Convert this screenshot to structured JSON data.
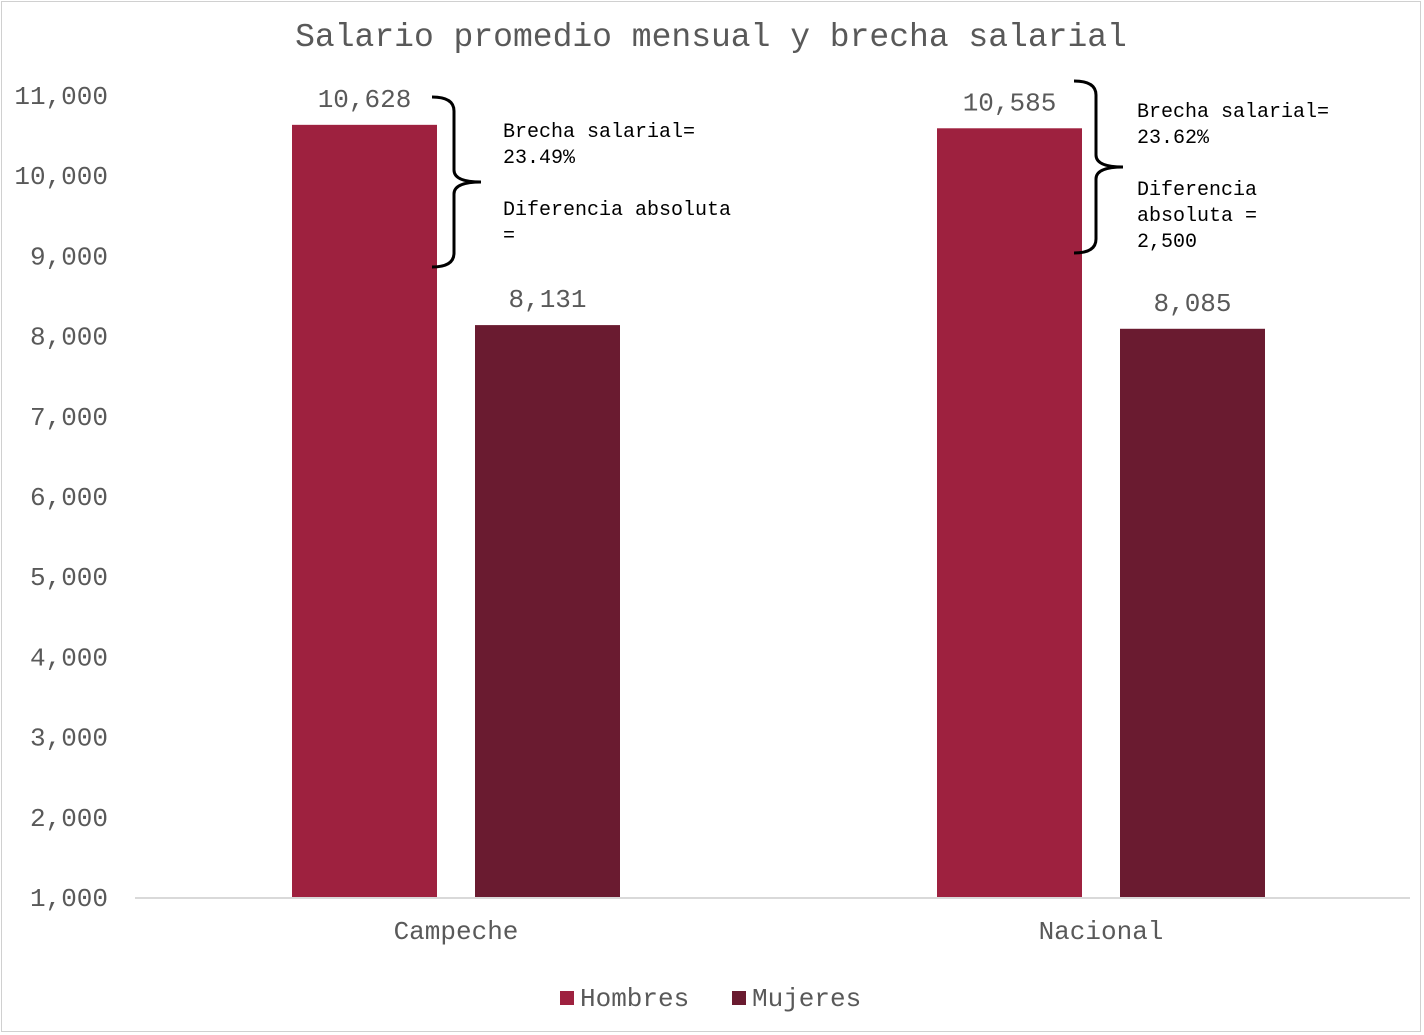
{
  "chart_data": {
    "type": "bar",
    "title": "Salario promedio mensual y brecha salarial",
    "xlabel": "",
    "ylabel": "",
    "categories": [
      "Campeche",
      "Nacional"
    ],
    "series": [
      {
        "name": "Hombres",
        "color": "#9e213f",
        "values": [
          10628,
          10585
        ],
        "labels": [
          "10,628",
          "10,585"
        ]
      },
      {
        "name": "Mujeres",
        "color": "#6a1b30",
        "values": [
          8131,
          8085
        ],
        "labels": [
          "8,131",
          "8,085"
        ]
      }
    ],
    "ylim": [
      1000,
      11000
    ],
    "y_ticks": [
      1000,
      2000,
      3000,
      4000,
      5000,
      6000,
      7000,
      8000,
      9000,
      10000,
      11000
    ],
    "y_tick_labels": [
      "1,000",
      "2,000",
      "3,000",
      "4,000",
      "5,000",
      "6,000",
      "7,000",
      "8,000",
      "9,000",
      "10,000",
      "11,000"
    ],
    "grid": false,
    "legend_position": "bottom",
    "annotations": [
      {
        "category": "Campeche",
        "lines": [
          "Brecha salarial=",
          "23.49%",
          "",
          "Diferencia absoluta",
          "="
        ]
      },
      {
        "category": "Nacional",
        "lines": [
          "Brecha salarial=",
          "23.62%",
          "",
          "Diferencia",
          "absoluta =",
          "2,500"
        ]
      }
    ],
    "axis_color": "#d9d9d9",
    "text_color": "#595959"
  }
}
